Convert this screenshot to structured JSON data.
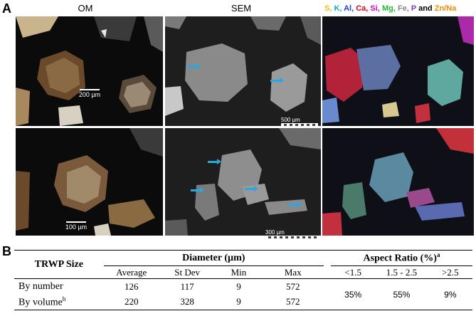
{
  "figure": {
    "panel_a": "A",
    "panel_b": "B",
    "col_om": "OM",
    "col_sem": "SEM",
    "legend": [
      {
        "text": "S, ",
        "color": "#f2c100"
      },
      {
        "text": "K, ",
        "color": "#00b4c8"
      },
      {
        "text": "Al, ",
        "color": "#1f3fd0"
      },
      {
        "text": "Ca, ",
        "color": "#e0001a"
      },
      {
        "text": "Si, ",
        "color": "#d400c8"
      },
      {
        "text": "Mg, ",
        "color": "#1fb832"
      },
      {
        "text": "Fe, ",
        "color": "#888888"
      },
      {
        "text": "P ",
        "color": "#7a40c8"
      },
      {
        "text": "and ",
        "color": "#000000"
      },
      {
        "text": "Zn/Na",
        "color": "#f28a00"
      }
    ],
    "scales": {
      "om_top": "200 µm",
      "om_bottom": "100 µm",
      "sem_top": "500 µm",
      "sem_bottom": "300 µm"
    }
  },
  "table": {
    "row_header": "TRWP Size",
    "diameter_header": "Diameter (µm)",
    "aspect_header": "Aspect Ratio (%)",
    "aspect_sup": "a",
    "diameter_cols": [
      "Average",
      "St Dev",
      "Min",
      "Max"
    ],
    "aspect_cols": [
      "<1.5",
      "1.5 - 2.5",
      ">2.5"
    ],
    "rows": [
      {
        "label": "By number",
        "sup": "",
        "values": [
          "126",
          "117",
          "9",
          "572"
        ]
      },
      {
        "label": "By volume",
        "sup": "b",
        "values": [
          "220",
          "328",
          "9",
          "572"
        ]
      }
    ],
    "aspect_values": [
      "35%",
      "55%",
      "9%"
    ]
  }
}
